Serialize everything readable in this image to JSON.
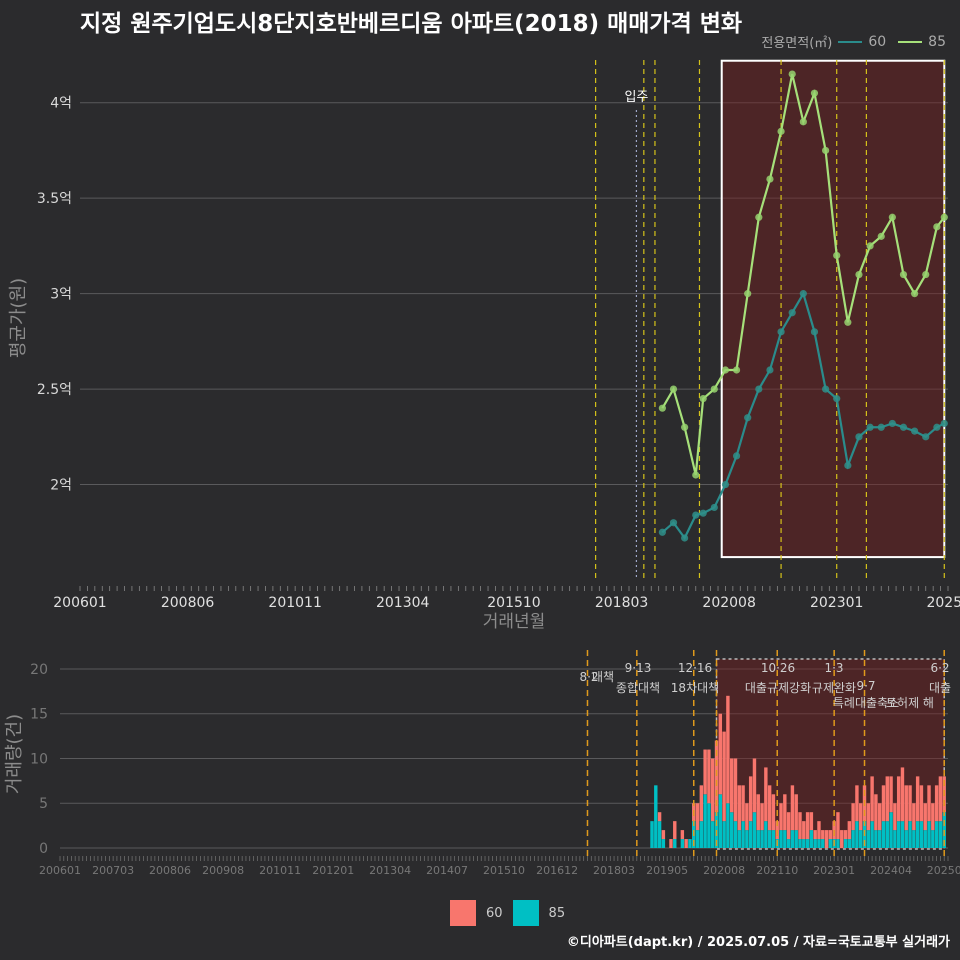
{
  "title": "지정 원주기업도시8단지호반베르디움 아파트(2018) 매매가격 변화",
  "legend": {
    "title": "전용면적(㎡)",
    "items": [
      {
        "label": "60",
        "line_color": "#2a8c8c"
      },
      {
        "label": "85",
        "line_color": "#a6e07a"
      }
    ]
  },
  "bottom_legend": [
    {
      "label": "60",
      "color": "#f8766d"
    },
    {
      "label": "85",
      "color": "#00bfc4"
    }
  ],
  "credit": "©디아파트(dapt.kr) / 2025.07.05 / 자료=국토교통부 실거래가",
  "chart_data": [
    {
      "type": "line",
      "xlabel": "거래년월",
      "ylabel": "평균가(원)",
      "x_ticks": [
        "200601",
        "200806",
        "201011",
        "201304",
        "201510",
        "201803",
        "202008",
        "202301",
        "2025"
      ],
      "y_ticks": [
        "2억",
        "2.5억",
        "3억",
        "3.5억",
        "4억"
      ],
      "ylim": [
        1.5,
        4.25
      ],
      "unit": "억",
      "annotation": "입주",
      "series": [
        {
          "name": "60",
          "color": "#2a8c8c",
          "x": [
            "2019-02",
            "2019-05",
            "2019-08",
            "2019-11",
            "2020-01",
            "2020-04",
            "2020-07",
            "2020-10",
            "2021-01",
            "2021-04",
            "2021-07",
            "2021-10",
            "2022-01",
            "2022-04",
            "2022-07",
            "2022-10",
            "2023-01",
            "2023-04",
            "2023-07",
            "2023-10",
            "2024-01",
            "2024-04",
            "2024-07",
            "2024-10",
            "2025-01",
            "2025-04",
            "2025-06"
          ],
          "y": [
            1.75,
            1.8,
            1.72,
            1.84,
            1.85,
            1.88,
            2.0,
            2.15,
            2.35,
            2.5,
            2.6,
            2.8,
            2.9,
            3.0,
            2.8,
            2.5,
            2.45,
            2.1,
            2.25,
            2.3,
            2.3,
            2.32,
            2.3,
            2.28,
            2.25,
            2.3,
            2.32
          ]
        },
        {
          "name": "85",
          "color": "#a6e07a",
          "x": [
            "2019-02",
            "2019-05",
            "2019-08",
            "2019-11",
            "2020-01",
            "2020-04",
            "2020-07",
            "2020-10",
            "2021-01",
            "2021-04",
            "2021-07",
            "2021-10",
            "2022-01",
            "2022-04",
            "2022-07",
            "2022-10",
            "2023-01",
            "2023-04",
            "2023-07",
            "2023-10",
            "2024-01",
            "2024-04",
            "2024-07",
            "2024-10",
            "2025-01",
            "2025-04",
            "2025-06"
          ],
          "y": [
            2.4,
            2.5,
            2.3,
            2.05,
            2.45,
            2.5,
            2.6,
            2.6,
            3.0,
            3.4,
            3.6,
            3.85,
            4.15,
            3.9,
            4.05,
            3.75,
            3.2,
            2.85,
            3.1,
            3.25,
            3.3,
            3.4,
            3.1,
            3.0,
            3.1,
            3.35,
            3.4
          ]
        }
      ],
      "policy_lines": [
        "2017-08",
        "2018-09",
        "2018-12",
        "2019-12",
        "2021-10",
        "2023-01",
        "2023-09",
        "2025-06"
      ],
      "highlight_region": [
        "2020-06",
        "2025-06"
      ]
    },
    {
      "type": "bar",
      "ylabel": "거래량(건)",
      "x_ticks": [
        "200601",
        "200703",
        "200806",
        "200908",
        "201011",
        "201201",
        "201304",
        "201407",
        "201510",
        "201612",
        "201803",
        "201905",
        "202008",
        "202110",
        "202301",
        "202404",
        "20250"
      ],
      "y_ticks": [
        "0",
        "5",
        "10",
        "15",
        "20"
      ],
      "ylim": [
        0,
        21
      ],
      "events": [
        {
          "date": "8·2",
          "label": "대책"
        },
        {
          "date": "9·13",
          "label": "종합대책"
        },
        {
          "date": "12·16",
          "label": "18차대책"
        },
        {
          "date": "10·26",
          "label": "대출규제강화"
        },
        {
          "date": "1·3",
          "label": "규제완화"
        },
        {
          "date": "9·7",
          "label": "특례대출축소"
        },
        {
          "date": "6·2",
          "label": "대출"
        },
        {
          "date": "",
          "label": "토허제 해"
        }
      ],
      "series": [
        {
          "name": "60",
          "color": "#f8766d",
          "months": [
            "2019-01",
            "2019-02",
            "2019-03",
            "2019-04",
            "2019-05",
            "2019-06",
            "2019-07",
            "2019-08",
            "2019-09",
            "2019-10",
            "2019-11",
            "2019-12",
            "2020-01",
            "2020-02",
            "2020-03",
            "2020-04",
            "2020-05",
            "2020-06",
            "2020-07",
            "2020-08",
            "2020-09",
            "2020-10",
            "2020-11",
            "2020-12",
            "2021-01",
            "2021-02",
            "2021-03",
            "2021-04",
            "2021-05",
            "2021-06",
            "2021-07",
            "2021-08",
            "2021-09",
            "2021-10",
            "2021-11",
            "2021-12",
            "2022-01",
            "2022-02",
            "2022-03",
            "2022-04",
            "2022-05",
            "2022-06",
            "2022-07",
            "2022-08",
            "2022-09",
            "2022-10",
            "2022-11",
            "2022-12",
            "2023-01",
            "2023-02",
            "2023-03",
            "2023-04",
            "2023-05",
            "2023-06",
            "2023-07",
            "2023-08",
            "2023-09",
            "2023-10",
            "2023-11",
            "2023-12",
            "2024-01",
            "2024-02",
            "2024-03",
            "2024-04",
            "2024-05",
            "2024-06",
            "2024-07",
            "2024-08",
            "2024-09",
            "2024-10",
            "2024-11",
            "2024-12",
            "2025-01",
            "2025-02",
            "2025-03",
            "2025-04",
            "2025-05",
            "2025-06"
          ],
          "values": [
            0,
            0,
            1,
            1,
            0,
            1,
            2,
            0,
            1,
            1,
            0,
            2,
            3,
            4,
            5,
            6,
            7,
            8,
            9,
            10,
            12,
            6,
            7,
            5,
            4,
            3,
            5,
            6,
            4,
            3,
            6,
            5,
            4,
            2,
            3,
            4,
            3,
            5,
            4,
            3,
            2,
            3,
            2,
            1,
            2,
            1,
            2,
            1,
            2,
            3,
            2,
            1,
            2,
            3,
            4,
            3,
            4,
            3,
            5,
            4,
            3,
            4,
            5,
            4,
            3,
            5,
            6,
            5,
            4,
            3,
            5,
            4,
            3,
            4,
            3,
            4,
            5,
            4
          ]
        },
        {
          "name": "85",
          "color": "#00bfc4",
          "months": [
            "2019-01",
            "2019-02",
            "2019-03",
            "2019-04",
            "2019-05",
            "2019-06",
            "2019-07",
            "2019-08",
            "2019-09",
            "2019-10",
            "2019-11",
            "2019-12",
            "2020-01",
            "2020-02",
            "2020-03",
            "2020-04",
            "2020-05",
            "2020-06",
            "2020-07",
            "2020-08",
            "2020-09",
            "2020-10",
            "2020-11",
            "2020-12",
            "2021-01",
            "2021-02",
            "2021-03",
            "2021-04",
            "2021-05",
            "2021-06",
            "2021-07",
            "2021-08",
            "2021-09",
            "2021-10",
            "2021-11",
            "2021-12",
            "2022-01",
            "2022-02",
            "2022-03",
            "2022-04",
            "2022-05",
            "2022-06",
            "2022-07",
            "2022-08",
            "2022-09",
            "2022-10",
            "2022-11",
            "2022-12",
            "2023-01",
            "2023-02",
            "2023-03",
            "2023-04",
            "2023-05",
            "2023-06",
            "2023-07",
            "2023-08",
            "2023-09",
            "2023-10",
            "2023-11",
            "2023-12",
            "2024-01",
            "2024-02",
            "2024-03",
            "2024-04",
            "2024-05",
            "2024-06",
            "2024-07",
            "2024-08",
            "2024-09",
            "2024-10",
            "2024-11",
            "2024-12",
            "2025-01",
            "2025-02",
            "2025-03",
            "2025-04",
            "2025-05",
            "2025-06"
          ],
          "values": [
            3,
            7,
            3,
            1,
            0,
            0,
            1,
            0,
            1,
            0,
            1,
            3,
            2,
            3,
            6,
            5,
            3,
            4,
            6,
            3,
            5,
            4,
            3,
            2,
            3,
            2,
            3,
            4,
            2,
            2,
            3,
            2,
            2,
            1,
            2,
            2,
            1,
            2,
            2,
            1,
            1,
            1,
            2,
            1,
            1,
            1,
            0,
            1,
            1,
            1,
            0,
            1,
            1,
            2,
            3,
            2,
            3,
            2,
            3,
            2,
            2,
            3,
            3,
            4,
            2,
            3,
            3,
            2,
            3,
            2,
            3,
            3,
            2,
            3,
            2,
            3,
            3,
            4
          ]
        }
      ]
    }
  ]
}
